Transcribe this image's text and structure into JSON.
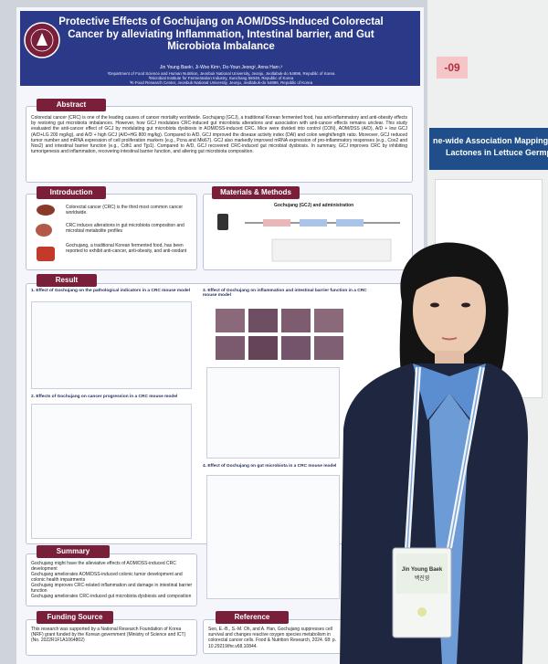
{
  "poster": {
    "title": "Protective Effects of Gochujang on AOM/DSS-Induced Colorectal Cancer by alleviating Inflammation, Intestinal barrier, and Gut Microbiota Imbalance",
    "authors": "Jin Young Baek¹, Ji-Woo Kim¹, Do-Youn Jeong², Anna Han¹,³",
    "affiliations": [
      "¹Department of Food Science and Human Nutrition, Jeonbuk National University, Jeonju, Jeollabuk-do 54896, Republic of Korea",
      "²Microbial Institute for Fermentation Industry, Sunchang 56048, Republic of Korea",
      "³K-Food Research Center, Jeonbuk National University, Jeonju, Jeollabuk-do 54896, Republic of Korea"
    ],
    "abstract": {
      "heading": "Abstract",
      "text": "Colorectal cancer (CRC) is one of the leading causes of cancer mortality worldwide. Gochujang (GCJ), a traditional Korean fermented food, has anti-inflammatory and anti-obesity effects by restoring gut microbiota imbalances. However, how GCJ modulates CRC-induced gut microbiota alterations and association with anti-cancer effects remains unclear. This study evaluated the anti-cancer effect of GCJ by modulating gut microbiota dysbiosis in AOM/DSS-induced CRC. Mice were divided into control (CON), AOM/DSS (A/D), A/D + low GCJ (A/D+LG 200 mg/kg), and A/D + high GCJ (A/D+HG 800 mg/kg). Compared to A/D, GCJ improved the disease activity index (DAI) and colon weight/length ratio. Moreover, GCJ reduced tumor number and mRNA expression of cell proliferation markers (e.g., Pcna and Mki67). GCJ also markedly improved mRNA expression of pro-inflammatory responses (e.g., Cox2 and Nos2) and intestinal barrier function (e.g., Cdh1 and Tjp1). Compared to A/D, GCJ recovered CRC-induced gut microbial dysbiosis. In summary, GCJ improves CRC by inhibiting tumorigenesis and inflammation, recovering intestinal barrier function, and altering gut microbiota composition."
    },
    "introduction": {
      "heading": "Introduction",
      "items": [
        "Colorectal cancer (CRC) is the third most common cancer worldwide.",
        "CRC induces alterations in gut microbiota composition and microbial metabolite profiles",
        "Gochujang, a traditional Korean fermented food, has been reported to exhibit anti-cancer, anti-obesity, and anti-oxidant"
      ]
    },
    "methods": {
      "heading": "Materials & Methods",
      "subtitle": "Gochujang (GCJ) and administration"
    },
    "result": {
      "heading": "Result",
      "panels": [
        "1. Effect of Gochujang on the pathological indicators in a CRC mouse model",
        "2. Effects of Gochujang on cancer progression in a CRC mouse model",
        "3. Effect of Gochujang on inflammation and intestinal barrier function in a CRC mouse model",
        "4. Effect of Gochujang on gut microbiota in a CRC mouse model"
      ]
    },
    "summary": {
      "heading": "Summary",
      "items": [
        "Gochujang might have the alleviative effects of AOM/DSS-induced CRC development",
        "Gochujang ameliorates AOM/DSS-induced colonic tumor development and colonic health impairments",
        "Gochujang improves CRC-related inflammation and damage in intestinal barrier function",
        "Gochujang ameliorates CRC-induced gut microbiota dysbiosis and composition"
      ]
    },
    "funding": {
      "heading": "Funding Source",
      "text": "This research was supported by a National Research Foundation of Korea (NRF) grant funded by the Korean government (Ministry of Science and ICT) (No. 2022R1F1A1064802)"
    },
    "reference": {
      "heading": "Reference",
      "text": "Seo, E.-B., S.-M. Oh, and A. Han, Gochujang suppresses cell survival and changes reactive oxygen species metabolism in colorectal cancer cells. Food & Nutrition Research, 2024. 68: p. 10.29219/fnr.v68.10844."
    }
  },
  "badge": {
    "name": "Jin Young Baek",
    "name_korean": "백진영"
  },
  "neighbor_poster": {
    "number": "-09",
    "title_lines": [
      "ne-wide Association Mapping of Bit",
      "Lactones in Lettuce Germpl"
    ]
  }
}
